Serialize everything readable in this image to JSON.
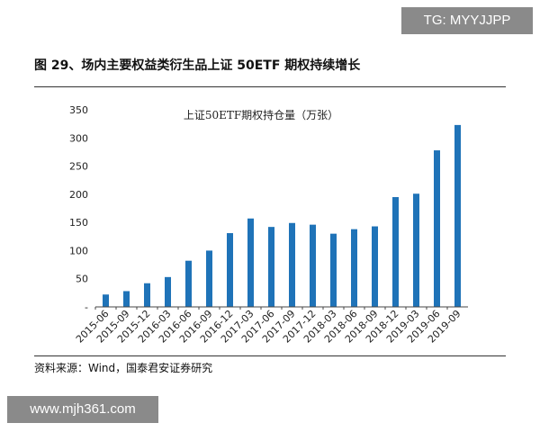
{
  "watermark_top": "TG: MYYJJPP",
  "figure_title": "图 29、场内主要权益类衍生品上证 50ETF 期权持续增长",
  "source": "资料来源：Wind，国泰君安证券研究",
  "watermark_bottom": "www.mjh361.com",
  "colors": {
    "bar": "#1f73b8",
    "text": "#222222"
  },
  "chart_data": {
    "type": "bar",
    "title": "上证50ETF期权持仓量（万张）",
    "categories": [
      "2015-06",
      "2015-09",
      "2015-12",
      "2016-03",
      "2016-06",
      "2016-09",
      "2016-12",
      "2017-03",
      "2017-06",
      "2017-09",
      "2017-12",
      "2018-03",
      "2018-06",
      "2018-09",
      "2018-12",
      "2019-03",
      "2019-06",
      "2019-09"
    ],
    "values": [
      22,
      28,
      42,
      53,
      82,
      100,
      131,
      157,
      142,
      149,
      146,
      130,
      138,
      143,
      195,
      201,
      278,
      323
    ],
    "ylim": [
      0,
      350
    ],
    "yticks": [
      0,
      50,
      100,
      150,
      200,
      250,
      300,
      350
    ],
    "ytick_labels": [
      "-",
      "50",
      "100",
      "150",
      "200",
      "250",
      "300",
      "350"
    ],
    "grid": false,
    "legend": "none"
  }
}
